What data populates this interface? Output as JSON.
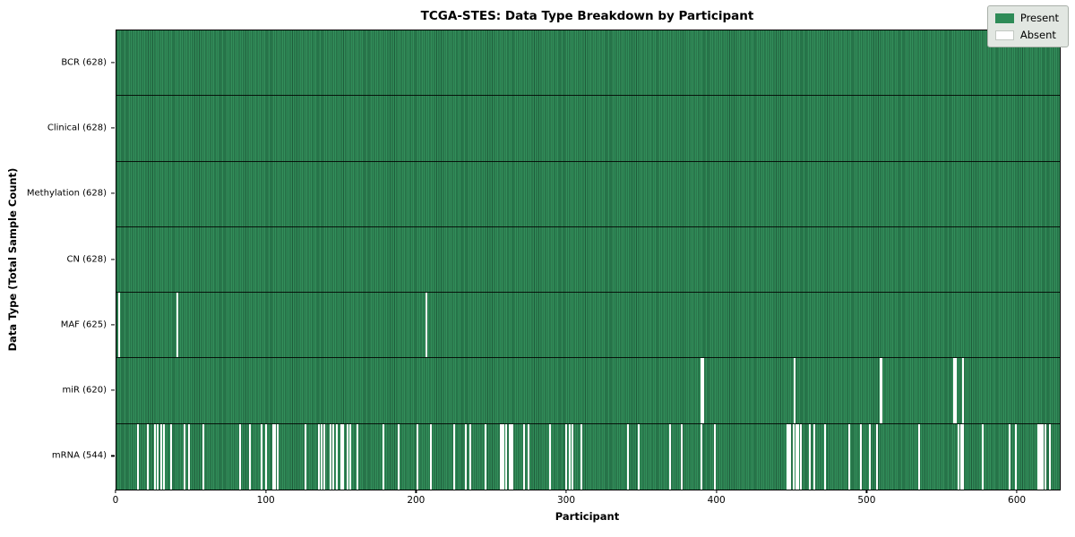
{
  "title": "TCGA-STES: Data Type Breakdown by Participant",
  "chart_data": {
    "type": "heatmap",
    "title": "TCGA-STES: Data Type Breakdown by Participant",
    "xlabel": "Participant",
    "ylabel": "Data Type (Total Sample Count)",
    "x_range": [
      0,
      628
    ],
    "x_ticks": [
      0,
      100,
      200,
      300,
      400,
      500,
      600
    ],
    "grid": false,
    "total_participants": 628,
    "legend": {
      "position": "upper right",
      "entries": [
        {
          "label": "Present",
          "color": "#2e8b57"
        },
        {
          "label": "Absent",
          "color": "#ffffff"
        }
      ]
    },
    "rows": [
      {
        "label": "BCR (628)",
        "data_type": "BCR",
        "present_count": 628,
        "absent_participants": []
      },
      {
        "label": "Clinical (628)",
        "data_type": "Clinical",
        "present_count": 628,
        "absent_participants": []
      },
      {
        "label": "Methylation (628)",
        "data_type": "Methylation",
        "present_count": 628,
        "absent_participants": []
      },
      {
        "label": "CN (628)",
        "data_type": "CN",
        "present_count": 628,
        "absent_participants": []
      },
      {
        "label": "MAF (625)",
        "data_type": "MAF",
        "present_count": 625,
        "absent_participants": [
          1,
          40,
          206
        ]
      },
      {
        "label": "miR (620)",
        "data_type": "miR",
        "present_count": 620,
        "absent_participants": [
          389,
          390,
          451,
          508,
          509,
          557,
          558,
          563
        ]
      },
      {
        "label": "mRNA (544)",
        "data_type": "mRNA",
        "present_count": 544,
        "absent_participants": [
          14,
          20,
          25,
          27,
          29,
          31,
          36,
          45,
          48,
          57,
          82,
          88,
          96,
          99,
          104,
          105,
          107,
          125,
          134,
          136,
          138,
          142,
          144,
          146,
          149,
          150,
          153,
          155,
          160,
          177,
          187,
          200,
          209,
          224,
          232,
          235,
          245,
          255,
          256,
          257,
          259,
          261,
          262,
          263,
          271,
          274,
          288,
          299,
          301,
          303,
          309,
          340,
          347,
          368,
          376,
          389,
          398,
          446,
          447,
          448,
          450,
          452,
          453,
          455,
          461,
          464,
          471,
          487,
          495,
          501,
          506,
          534,
          560,
          562,
          563,
          576,
          594,
          598,
          613,
          614,
          615,
          616,
          618,
          621
        ]
      }
    ],
    "colors": {
      "present": "#2e8b57",
      "present_edge": "#1f5c3b",
      "absent": "#ffffff",
      "plot_border": "#000000",
      "row_separator": "#000000",
      "legend_background": "#e2e7e2"
    }
  }
}
